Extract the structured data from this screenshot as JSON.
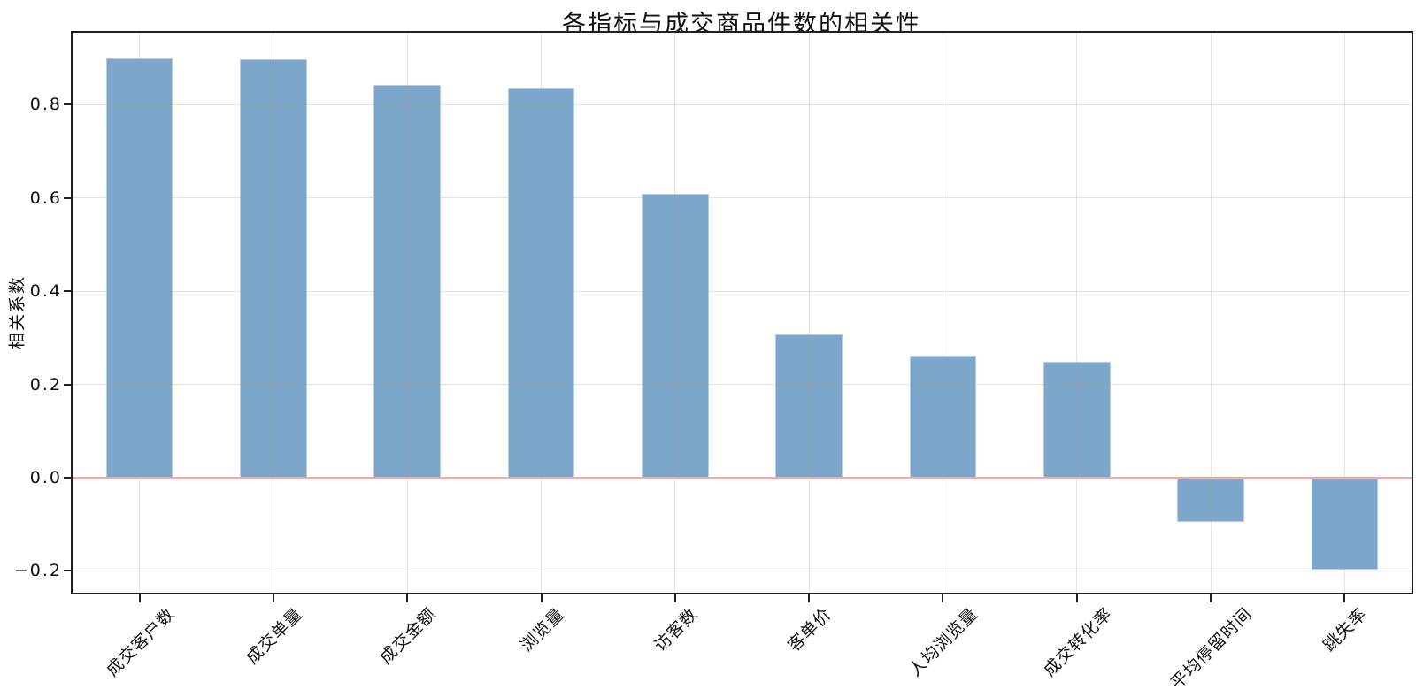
{
  "chart_data": {
    "type": "bar",
    "title": "各指标与成交商品件数的相关性",
    "xlabel": "",
    "ylabel": "相关系数",
    "categories": [
      "成交客户数",
      "成交单量",
      "成交金额",
      "浏览量",
      "访客数",
      "客单价",
      "人均浏览量",
      "成交转化率",
      "平均停留时间",
      "跳失率"
    ],
    "values": [
      0.9,
      0.897,
      0.843,
      0.835,
      0.609,
      0.307,
      0.262,
      0.248,
      -0.095,
      -0.198
    ],
    "yticks": [
      0.8,
      0.6,
      0.4,
      0.2,
      0.0,
      -0.2
    ],
    "ytick_labels": [
      "0.8",
      "0.6",
      "0.4",
      "0.2",
      "0.0",
      "−0.2"
    ],
    "ylim": [
      -0.25,
      0.95
    ],
    "grid": true,
    "legend_position": "none",
    "zero_reference_line": 0.0,
    "colors": {
      "bar": "#7da7ca",
      "zero_line": "#f2aaa4",
      "zero_line_accent": "#d62828",
      "grid": "#ebebeb",
      "spine": "#1f1f1f",
      "text": "#111111"
    }
  }
}
